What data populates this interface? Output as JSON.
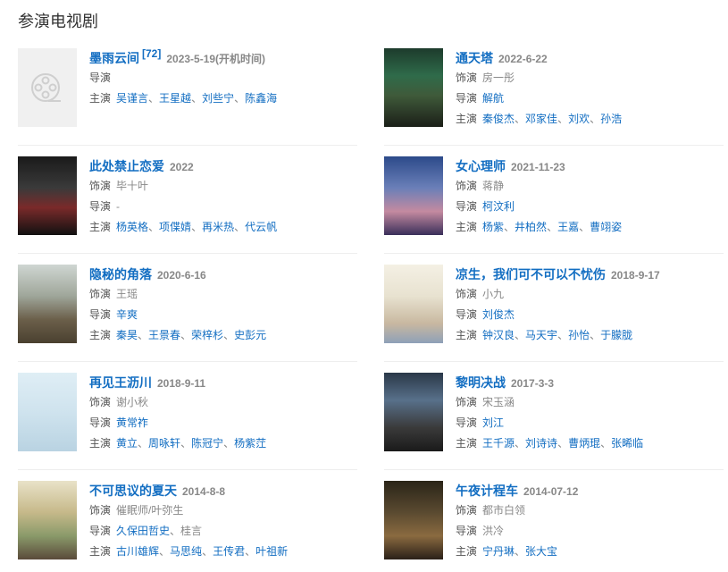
{
  "section_title": "参演电视剧",
  "labels": {
    "role": "饰演",
    "director": "导演",
    "cast": "主演"
  },
  "colors": {
    "link": "#136ec2",
    "muted": "#888888",
    "divider": "#eeeeee"
  },
  "items": [
    {
      "title": "墨雨云间",
      "sup": "[72]",
      "date": "2023-5-19(开机时间)",
      "poster": "placeholder-film-reel-icon",
      "director": [],
      "cast": [
        {
          "n": "吴谨言",
          "l": true
        },
        {
          "n": "王星越",
          "l": true
        },
        {
          "n": "刘些宁",
          "l": true
        },
        {
          "n": "陈鑫海",
          "l": true
        }
      ]
    },
    {
      "title": "通天塔",
      "date": "2022-6-22",
      "poster": "poster-image",
      "role": "房一彤",
      "director": [
        {
          "n": "解航",
          "l": true
        }
      ],
      "cast": [
        {
          "n": "秦俊杰",
          "l": true
        },
        {
          "n": "邓家佳",
          "l": true
        },
        {
          "n": "刘欢",
          "l": true
        },
        {
          "n": "孙浩",
          "l": true
        }
      ]
    },
    {
      "title": "此处禁止恋爱",
      "date": "2022",
      "poster": "poster-image",
      "role": "毕十叶",
      "director": [
        {
          "n": "-",
          "l": false
        }
      ],
      "cast": [
        {
          "n": "杨英格",
          "l": true
        },
        {
          "n": "项偞婧",
          "l": true
        },
        {
          "n": "再米热",
          "l": true
        },
        {
          "n": "代云帆",
          "l": true
        }
      ]
    },
    {
      "title": "女心理师",
      "date": "2021-11-23",
      "poster": "poster-image",
      "role": "蒋静",
      "director": [
        {
          "n": "柯汶利",
          "l": true
        }
      ],
      "cast": [
        {
          "n": "杨紫",
          "l": true
        },
        {
          "n": "井柏然",
          "l": true
        },
        {
          "n": "王嘉",
          "l": true
        },
        {
          "n": "曹翊姿",
          "l": true
        }
      ]
    },
    {
      "title": "隐秘的角落",
      "date": "2020-6-16",
      "poster": "poster-image",
      "role": "王瑶",
      "director": [
        {
          "n": "辛爽",
          "l": true
        }
      ],
      "cast": [
        {
          "n": "秦昊",
          "l": true
        },
        {
          "n": "王景春",
          "l": true
        },
        {
          "n": "荣梓杉",
          "l": true
        },
        {
          "n": "史彭元",
          "l": true
        }
      ]
    },
    {
      "title": "凉生，我们可不可以不忧伤",
      "date": "2018-9-17",
      "poster": "poster-image",
      "role": "小九",
      "director": [
        {
          "n": "刘俊杰",
          "l": true
        }
      ],
      "cast": [
        {
          "n": "钟汉良",
          "l": true
        },
        {
          "n": "马天宇",
          "l": true
        },
        {
          "n": "孙怡",
          "l": true
        },
        {
          "n": "于朦胧",
          "l": true
        }
      ]
    },
    {
      "title": "再见王沥川",
      "date": "2018-9-11",
      "poster": "poster-image",
      "role": "谢小秋",
      "director": [
        {
          "n": "黄常祚",
          "l": true
        }
      ],
      "cast": [
        {
          "n": "黄立",
          "l": true
        },
        {
          "n": "周咏轩",
          "l": true
        },
        {
          "n": "陈冠宁",
          "l": true
        },
        {
          "n": "杨紫茳",
          "l": true
        }
      ]
    },
    {
      "title": "黎明决战",
      "date": "2017-3-3",
      "poster": "poster-image",
      "role": "宋玉涵",
      "director": [
        {
          "n": "刘江",
          "l": true
        }
      ],
      "cast": [
        {
          "n": "王千源",
          "l": true
        },
        {
          "n": "刘诗诗",
          "l": true
        },
        {
          "n": "曹炳琨",
          "l": true
        },
        {
          "n": "张晞临",
          "l": true
        }
      ]
    },
    {
      "title": "不可思议的夏天",
      "date": "2014-8-8",
      "poster": "poster-image",
      "role": "催眠师/叶弥生",
      "director": [
        {
          "n": "久保田哲史",
          "l": true
        },
        {
          "n": "桂言",
          "l": false
        }
      ],
      "cast": [
        {
          "n": "古川雄辉",
          "l": true
        },
        {
          "n": "马思纯",
          "l": true
        },
        {
          "n": "王传君",
          "l": true
        },
        {
          "n": "叶祖新",
          "l": true
        }
      ]
    },
    {
      "title": "午夜计程车",
      "date": "2014-07-12",
      "poster": "poster-image",
      "role": "都市白领",
      "director": [
        {
          "n": "洪冷",
          "l": false
        }
      ],
      "cast": [
        {
          "n": "宁丹琳",
          "l": true
        },
        {
          "n": "张大宝",
          "l": true
        }
      ]
    }
  ]
}
